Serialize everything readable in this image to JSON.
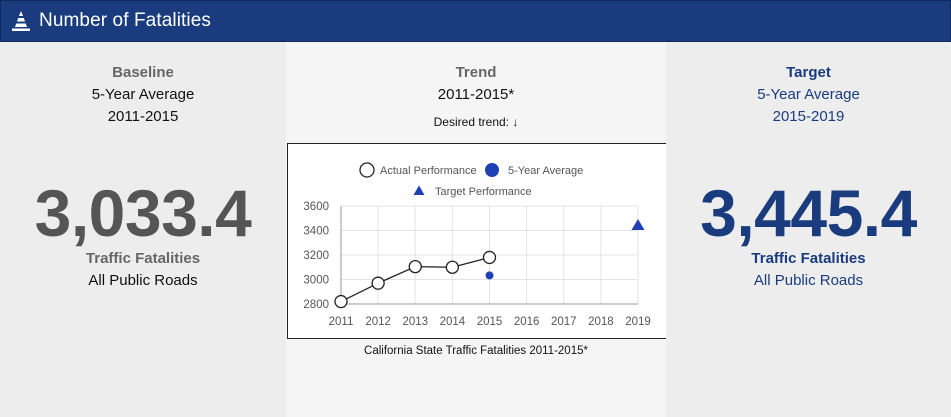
{
  "header": {
    "title": "Number of Fatalities",
    "icon": "traffic-cone-icon"
  },
  "baseline": {
    "heading": "Baseline",
    "line1": "5-Year Average",
    "line2": "2011-2015",
    "value": "3,033.4",
    "label": "Traffic Fatalities",
    "sublabel": "All Public Roads"
  },
  "trend": {
    "heading": "Trend",
    "range": "2011-2015*",
    "desired": "Desired trend: ↓",
    "caption": "California State Traffic Fatalities 2011-2015*"
  },
  "target": {
    "heading": "Target",
    "line1": "5-Year Average",
    "line2": "2015-2019",
    "value": "3,445.4",
    "label": "Traffic Fatalities",
    "sublabel": "All Public Roads"
  },
  "colors": {
    "header": "#1a3c7e",
    "accent": "#1f3fb5"
  },
  "chart_data": {
    "type": "line",
    "x": [
      2011,
      2012,
      2013,
      2014,
      2015,
      2016,
      2017,
      2018,
      2019
    ],
    "xlim": [
      2011,
      2019
    ],
    "ylim": [
      2800,
      3600
    ],
    "yticks": [
      2800,
      3000,
      3200,
      3400,
      3600
    ],
    "grid": true,
    "legend": "top",
    "series": [
      {
        "name": "Actual Performance",
        "marker": "open-circle",
        "points": [
          [
            2011,
            2820
          ],
          [
            2012,
            2970
          ],
          [
            2013,
            3105
          ],
          [
            2014,
            3100
          ],
          [
            2015,
            3180
          ]
        ]
      },
      {
        "name": "5-Year Average",
        "marker": "filled-circle",
        "points": [
          [
            2015,
            3033.4
          ]
        ]
      },
      {
        "name": "Target Performance",
        "marker": "triangle",
        "points": [
          [
            2019,
            3445.4
          ]
        ]
      }
    ]
  }
}
